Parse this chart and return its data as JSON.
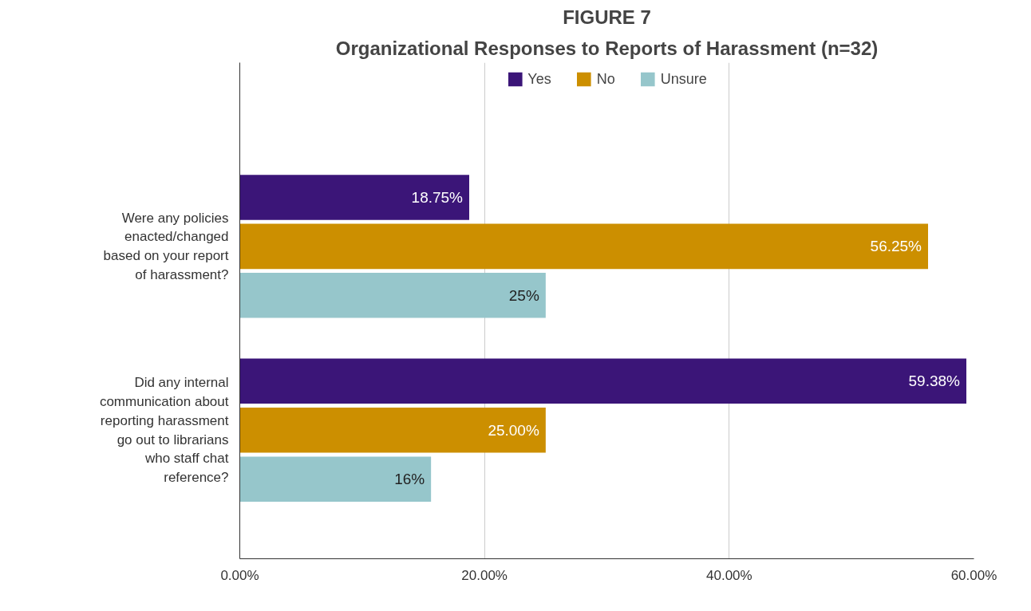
{
  "chart_data": {
    "type": "bar",
    "orientation": "horizontal",
    "title": "FIGURE 7",
    "subtitle": "Organizational Responses to Reports of Harassment (n=32)",
    "categories": [
      "Were any policies enacted/changed based on your report of harassment?",
      "Did any internal communication about reporting harassment go out to librarians who staff chat reference?"
    ],
    "series": [
      {
        "name": "Yes",
        "color": "#3b1578",
        "values": [
          18.75,
          59.38
        ],
        "value_labels": [
          "18.75%",
          "59.38%"
        ]
      },
      {
        "name": "No",
        "color": "#cc8f00",
        "values": [
          56.25,
          25.0
        ],
        "value_labels": [
          "56.25%",
          "25.00%"
        ]
      },
      {
        "name": "Unsure",
        "color": "#96c6cb",
        "values": [
          25,
          15.63
        ],
        "value_labels": [
          "25%",
          "16%"
        ]
      }
    ],
    "xlim": [
      0,
      60
    ],
    "xticks": [
      {
        "value": 0,
        "label": "0.00%"
      },
      {
        "value": 20,
        "label": "20.00%"
      },
      {
        "value": 40,
        "label": "40.00%"
      },
      {
        "value": 60,
        "label": "60.00%"
      }
    ],
    "grid": "x",
    "legend": "top"
  }
}
